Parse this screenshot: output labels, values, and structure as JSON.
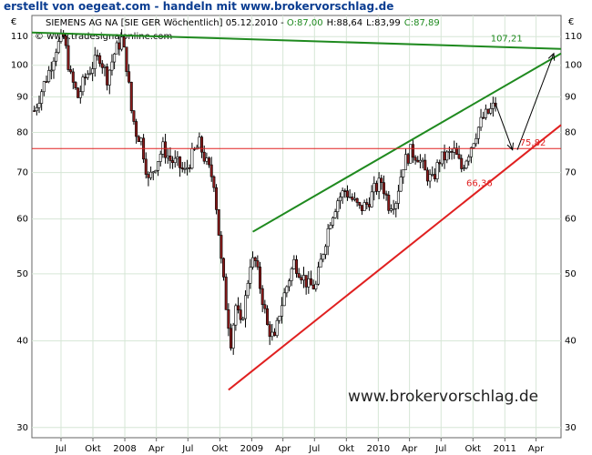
{
  "banner": "erstellt von oegeat.com - handeln mit www.brokervorschlag.de",
  "header": {
    "left_currency": "€",
    "right_currency": "€",
    "instrument": "SIEMENS AG NA [SIE GER  Wöchentlich] 05.12.2010",
    "ohlc_sep": " - ",
    "open": "O:87,00",
    "high": "H:88,64",
    "low": "L:83,99",
    "close": "C:87,89",
    "source": "www.tradesignalonline.com"
  },
  "watermark": "www.brokervorschlag.de",
  "colors": {
    "background": "#ffffff",
    "grid": "#d6e6d6",
    "price": "#000000",
    "candle_up": "#ffffff",
    "candle_down": "#8b1a1a",
    "green_line": "#1f8a1f",
    "red_line": "#e02020",
    "close_text": "#1f8a1f"
  },
  "chart_data": {
    "type": "candlestick",
    "title": "SIEMENS AG NA [SIE GER  Wöchentlich] 05.12.2010",
    "y_scale": "log",
    "ylim": [
      29,
      118
    ],
    "y_ticks": [
      30,
      40,
      50,
      60,
      70,
      80,
      90,
      100,
      110
    ],
    "x_ticks": [
      {
        "label": "Jul",
        "date": "2007-07-01"
      },
      {
        "label": "Okt",
        "date": "2007-10-01"
      },
      {
        "label": "2008",
        "date": "2008-01-01"
      },
      {
        "label": "Apr",
        "date": "2008-04-01"
      },
      {
        "label": "Jul",
        "date": "2008-07-01"
      },
      {
        "label": "Okt",
        "date": "2008-10-01"
      },
      {
        "label": "2009",
        "date": "2009-01-01"
      },
      {
        "label": "Apr",
        "date": "2009-04-01"
      },
      {
        "label": "Jul",
        "date": "2009-07-01"
      },
      {
        "label": "Okt",
        "date": "2009-10-01"
      },
      {
        "label": "2010",
        "date": "2010-01-01"
      },
      {
        "label": "Apr",
        "date": "2010-04-01"
      },
      {
        "label": "Jul",
        "date": "2010-07-01"
      },
      {
        "label": "Okt",
        "date": "2010-10-01"
      },
      {
        "label": "2011",
        "date": "2011-01-01"
      },
      {
        "label": "Apr",
        "date": "2011-04-01"
      }
    ],
    "xlim": [
      "2007-04-08",
      "2011-06-12"
    ],
    "grid": true,
    "price_path": [
      {
        "date": "2007-04-15",
        "value": 86
      },
      {
        "date": "2007-05-06",
        "value": 92
      },
      {
        "date": "2007-05-27",
        "value": 98
      },
      {
        "date": "2007-06-17",
        "value": 106
      },
      {
        "date": "2007-07-08",
        "value": 110
      },
      {
        "date": "2007-07-29",
        "value": 96
      },
      {
        "date": "2007-08-19",
        "value": 90
      },
      {
        "date": "2007-09-09",
        "value": 96
      },
      {
        "date": "2007-09-30",
        "value": 100
      },
      {
        "date": "2007-10-21",
        "value": 103
      },
      {
        "date": "2007-11-11",
        "value": 96
      },
      {
        "date": "2007-12-02",
        "value": 104
      },
      {
        "date": "2007-12-23",
        "value": 109
      },
      {
        "date": "2008-01-06",
        "value": 100
      },
      {
        "date": "2008-01-20",
        "value": 86
      },
      {
        "date": "2008-02-03",
        "value": 80
      },
      {
        "date": "2008-02-17",
        "value": 78
      },
      {
        "date": "2008-03-09",
        "value": 68
      },
      {
        "date": "2008-03-30",
        "value": 72
      },
      {
        "date": "2008-04-20",
        "value": 76
      },
      {
        "date": "2008-05-11",
        "value": 73
      },
      {
        "date": "2008-06-01",
        "value": 72
      },
      {
        "date": "2008-06-22",
        "value": 70
      },
      {
        "date": "2008-07-13",
        "value": 74
      },
      {
        "date": "2008-08-03",
        "value": 77
      },
      {
        "date": "2008-08-24",
        "value": 72
      },
      {
        "date": "2008-09-14",
        "value": 68
      },
      {
        "date": "2008-10-05",
        "value": 52
      },
      {
        "date": "2008-10-19",
        "value": 45
      },
      {
        "date": "2008-11-02",
        "value": 40
      },
      {
        "date": "2008-11-16",
        "value": 45
      },
      {
        "date": "2008-11-30",
        "value": 42
      },
      {
        "date": "2008-12-14",
        "value": 46
      },
      {
        "date": "2008-12-28",
        "value": 52
      },
      {
        "date": "2009-01-11",
        "value": 52
      },
      {
        "date": "2009-01-25",
        "value": 48
      },
      {
        "date": "2009-02-15",
        "value": 42
      },
      {
        "date": "2009-03-08",
        "value": 40
      },
      {
        "date": "2009-03-22",
        "value": 44
      },
      {
        "date": "2009-04-12",
        "value": 48
      },
      {
        "date": "2009-05-03",
        "value": 52
      },
      {
        "date": "2009-05-24",
        "value": 50
      },
      {
        "date": "2009-06-14",
        "value": 48
      },
      {
        "date": "2009-07-05",
        "value": 48
      },
      {
        "date": "2009-07-26",
        "value": 54
      },
      {
        "date": "2009-08-16",
        "value": 60
      },
      {
        "date": "2009-09-06",
        "value": 64
      },
      {
        "date": "2009-09-27",
        "value": 66
      },
      {
        "date": "2009-10-18",
        "value": 64
      },
      {
        "date": "2009-11-08",
        "value": 62
      },
      {
        "date": "2009-11-29",
        "value": 63
      },
      {
        "date": "2009-12-20",
        "value": 66
      },
      {
        "date": "2010-01-10",
        "value": 68
      },
      {
        "date": "2010-01-31",
        "value": 63
      },
      {
        "date": "2010-02-21",
        "value": 64
      },
      {
        "date": "2010-03-14",
        "value": 72
      },
      {
        "date": "2010-04-04",
        "value": 75
      },
      {
        "date": "2010-04-25",
        "value": 74
      },
      {
        "date": "2010-05-16",
        "value": 70
      },
      {
        "date": "2010-06-06",
        "value": 68
      },
      {
        "date": "2010-06-27",
        "value": 73
      },
      {
        "date": "2010-07-18",
        "value": 74
      },
      {
        "date": "2010-08-08",
        "value": 75
      },
      {
        "date": "2010-08-29",
        "value": 71
      },
      {
        "date": "2010-09-19",
        "value": 75
      },
      {
        "date": "2010-10-10",
        "value": 80
      },
      {
        "date": "2010-10-31",
        "value": 84
      },
      {
        "date": "2010-11-21",
        "value": 86
      },
      {
        "date": "2010-12-05",
        "value": 87.89
      }
    ],
    "lines": [
      {
        "kind": "resistance",
        "color": "green",
        "from": {
          "date": "2007-04-08",
          "value": 111.5
        },
        "to": {
          "date": "2011-06-12",
          "value": 105.6
        }
      },
      {
        "kind": "upper-channel",
        "color": "green",
        "from": {
          "date": "2009-01-04",
          "value": 57.5
        },
        "to": {
          "date": "2011-06-12",
          "value": 104
        }
      },
      {
        "kind": "lower-channel",
        "color": "red",
        "from": {
          "date": "2008-10-26",
          "value": 34
        },
        "to": {
          "date": "2011-06-12",
          "value": 82
        }
      },
      {
        "kind": "horizontal",
        "color": "red",
        "from": {
          "date": "2007-04-08",
          "value": 75.82
        },
        "to": {
          "date": "2011-06-12",
          "value": 75.82
        }
      }
    ],
    "arrows": [
      {
        "from": {
          "date": "2010-12-05",
          "value": 88
        },
        "to": {
          "date": "2011-01-23",
          "value": 75.5
        }
      },
      {
        "from": {
          "date": "2011-02-06",
          "value": 75.5
        },
        "to": {
          "date": "2011-05-22",
          "value": 104
        }
      }
    ],
    "annotations": [
      {
        "text": "107,21",
        "date": "2010-11-21",
        "value": 107.21,
        "color": "green"
      },
      {
        "text": "75,82",
        "date": "2011-02-13",
        "value": 75.82,
        "color": "red"
      },
      {
        "text": "66,36",
        "date": "2010-09-12",
        "value": 66.36,
        "color": "red"
      }
    ]
  }
}
